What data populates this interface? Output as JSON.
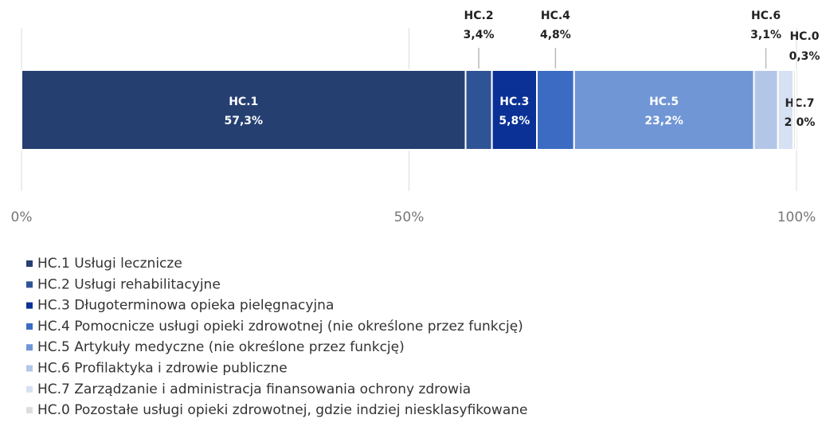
{
  "chart_data": {
    "type": "stacked-bar-horizontal",
    "xlim": [
      0,
      100
    ],
    "xticks": [
      {
        "value": 0,
        "label": "0%"
      },
      {
        "value": 50,
        "label": "50%"
      },
      {
        "value": 100,
        "label": "100%"
      }
    ],
    "grid": true,
    "series": [
      {
        "name": "HC.1 Usługi lecznicze",
        "label": "HC.1",
        "color": "#253f71",
        "values": [
          57.3
        ],
        "value_labels": [
          "57,3%"
        ]
      },
      {
        "name": "HC.2 Usługi rehabilitacyjne",
        "label": "HC.2",
        "color": "#2f5496",
        "values": [
          3.4
        ],
        "value_labels": [
          "3,4%"
        ]
      },
      {
        "name": "HC.3 Długoterminowa opieka pielęgnacyjna",
        "label": "HC.3",
        "color": "#0b3196",
        "values": [
          5.8
        ],
        "value_labels": [
          "5,8%"
        ]
      },
      {
        "name": "HC.4 Pomocnicze usługi opieki zdrowotnej (nie określone przez funkcję)",
        "label": "HC.4",
        "color": "#3b6bc3",
        "values": [
          4.8
        ],
        "value_labels": [
          "4,8%"
        ]
      },
      {
        "name": "HC.5 Artykuły medyczne (nie określone przez funkcję)",
        "label": "HC.5",
        "color": "#7096d6",
        "values": [
          23.2
        ],
        "value_labels": [
          "23,2%"
        ]
      },
      {
        "name": "HC.6 Profilaktyka i zdrowie publiczne",
        "label": "HC.6",
        "color": "#b4c6e7",
        "values": [
          3.1
        ],
        "value_labels": [
          "3,1%"
        ]
      },
      {
        "name": "HC.7 Zarządzanie i administracja finansowania ochrony zdrowia",
        "label": "HC.7",
        "color": "#d7e1f4",
        "values": [
          2.0
        ],
        "value_labels": [
          "2,0%"
        ]
      },
      {
        "name": "HC.0 Pozostałe usługi opieki zdrowotnej, gdzie indziej niesklasyfikowane",
        "label": "HC.0",
        "color": "#dedede",
        "values": [
          0.3
        ],
        "value_labels": [
          "0,3%"
        ]
      }
    ]
  }
}
